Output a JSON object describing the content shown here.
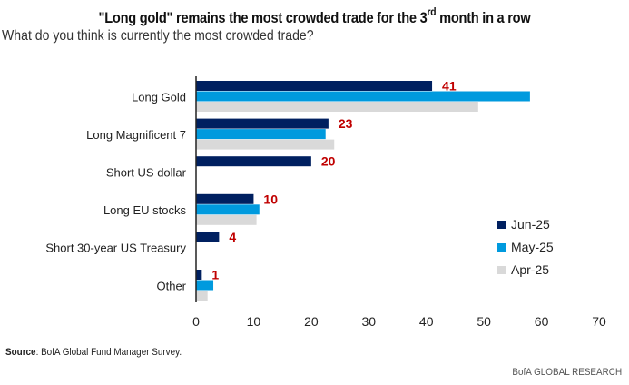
{
  "header": {
    "title_pre": "\"Long gold\" remains the most crowded trade for the 3",
    "title_sup": "rd",
    "title_post": " month in a row",
    "subtitle": "What do you think is currently the most crowded trade?"
  },
  "footer": {
    "source_label": "Source",
    "source_text": ": BofA Global Fund Manager Survey.",
    "brand": "BofA GLOBAL RESEARCH"
  },
  "chart_data": {
    "type": "bar",
    "orientation": "horizontal",
    "title": "\"Long gold\" remains the most crowded trade for the 3rd month in a row",
    "subtitle": "What do you think is currently the most crowded trade?",
    "categories": [
      "Long Gold",
      "Long Magnificent 7",
      "Short US dollar",
      "Long EU stocks",
      "Short 30-year US Treasury",
      "Other"
    ],
    "series": [
      {
        "name": "Jun-25",
        "color": "#002060",
        "values": [
          41,
          23,
          20,
          10,
          4,
          1
        ]
      },
      {
        "name": "May-25",
        "color": "#009ADE",
        "values": [
          58,
          22.5,
          null,
          11,
          null,
          3
        ]
      },
      {
        "name": "Apr-25",
        "color": "#D9D9D9",
        "values": [
          49,
          24,
          null,
          10.5,
          null,
          2
        ]
      }
    ],
    "data_labels": {
      "series": "Jun-25",
      "color": "#C00000",
      "values": [
        "41",
        "23",
        "20",
        "10",
        "4",
        "1"
      ]
    },
    "xlim": [
      0,
      70
    ],
    "xticks": [
      "0",
      "10",
      "20",
      "30",
      "40",
      "50",
      "60",
      "70"
    ],
    "xlabel": "",
    "ylabel": "",
    "grid": false,
    "legend_position": "bottom-right"
  }
}
